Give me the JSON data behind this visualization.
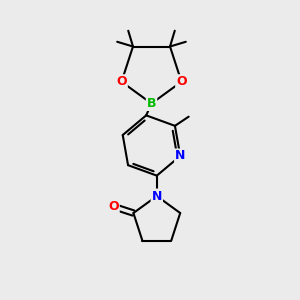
{
  "bg_color": "#ebebeb",
  "bond_color": "#000000",
  "bond_width": 1.5,
  "atom_colors": {
    "C": "#000000",
    "N": "#0000ff",
    "O": "#ff0000",
    "B": "#00bb00"
  },
  "figsize": [
    3.0,
    3.0
  ],
  "dpi": 100,
  "xlim": [
    0,
    10
  ],
  "ylim": [
    0,
    10
  ]
}
